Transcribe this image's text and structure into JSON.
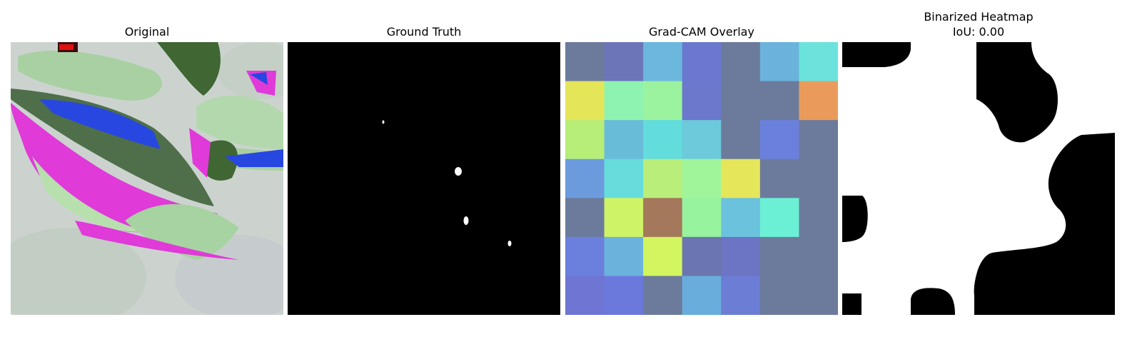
{
  "panels": [
    {
      "title": "Original"
    },
    {
      "title": "Ground Truth"
    },
    {
      "title": "Grad-CAM Overlay"
    },
    {
      "title": "Binarized Heatmap",
      "subtitle": "IoU: 0.00"
    }
  ],
  "heatmap_colors": [
    [
      "#6c7b9c",
      "#6b75b8",
      "#6bb7dd",
      "#6b78d0",
      "#6c7b9c",
      "#6bb3dc",
      "#6be3dc"
    ],
    [
      "#e5e55a",
      "#8ef3b0",
      "#9bf39f",
      "#6b78cc",
      "#6c7b9c",
      "#6c7b9c",
      "#ea9b5b"
    ],
    [
      "#b6ee78",
      "#69bcd8",
      "#63dcdd",
      "#6ccadb",
      "#6c7b9c",
      "#6b7fdc",
      "#6c7b9c"
    ],
    [
      "#6b9bdc",
      "#66dcdc",
      "#b9ee7a",
      "#a0f59a",
      "#e6e65b",
      "#6c7b9c",
      "#6c7b9c"
    ],
    [
      "#6c7b9c",
      "#cff366",
      "#a4785a",
      "#97f39e",
      "#6bc2dd",
      "#6cf0d5",
      "#6c7b9c"
    ],
    [
      "#6b7fdc",
      "#6bb3dc",
      "#d2f560",
      "#6b75b0",
      "#6b75c4",
      "#6c7b9c",
      "#6c7b9c"
    ],
    [
      "#6e75d2",
      "#6b79dc",
      "#6c7b9c",
      "#69addc",
      "#6b7dd4",
      "#6c7b9c",
      "#6c7b9c"
    ]
  ]
}
